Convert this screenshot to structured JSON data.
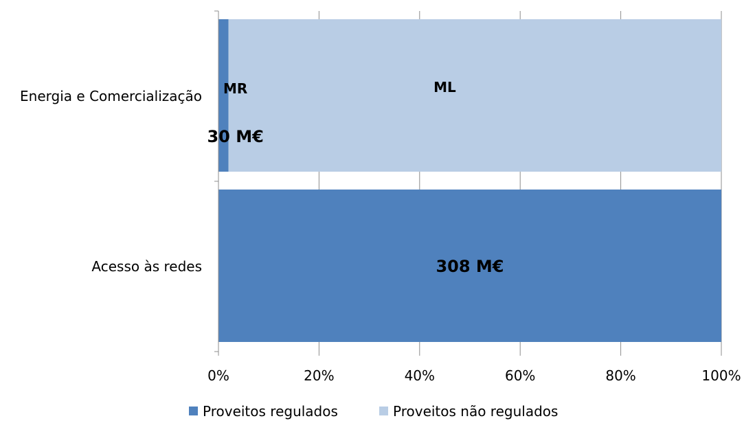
{
  "chart_data": {
    "type": "bar",
    "orientation": "horizontal",
    "stacked": true,
    "percent": true,
    "categories": [
      "Energia e Comercialização",
      "Acesso às redes"
    ],
    "series": [
      {
        "name": "Proveitos regulados",
        "values": [
          2,
          100
        ],
        "color": "#4F81BD"
      },
      {
        "name": "Proveitos não regulados",
        "values": [
          98,
          0
        ],
        "color": "#B9CDE5"
      }
    ],
    "xlim": [
      0,
      100
    ],
    "x_ticks": [
      "0%",
      "20%",
      "40%",
      "60%",
      "80%",
      "100%"
    ],
    "grid": true,
    "legend_position": "bottom",
    "annotations": [
      {
        "text": "MR",
        "category": 0,
        "x": 2
      },
      {
        "text": "30 M€",
        "category": 0,
        "x": 2
      },
      {
        "text": "ML",
        "category": 0,
        "x": 45
      },
      {
        "text": "308 M€",
        "category": 1,
        "x": 50
      }
    ]
  }
}
